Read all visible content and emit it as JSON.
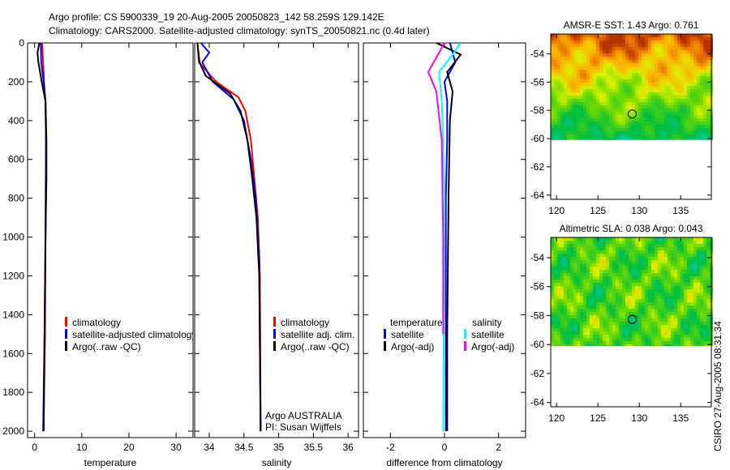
{
  "title_line1": "Argo profile: CS 5900339_19 20-Aug-2005 20050823_142 58.259S 129.142E",
  "title_line2": "Climatology: CARS2000. Satellite-adjusted climatology: synTS_20050821.nc (0.4d later)",
  "footer_stamp": "CSIRO 27-Aug-2005 08:31:34",
  "colors": {
    "clim": "#ff0000",
    "sat": "#0000ff",
    "argo": "#000000",
    "cyan": "#00ffff",
    "magenta": "#ff00ff"
  },
  "chart_data": [
    {
      "type": "line",
      "id": "temperature",
      "xlabel": "temperature",
      "ylabel": "",
      "xlim": [
        -1.5,
        33.6
      ],
      "ylim": [
        2033,
        0
      ],
      "xticks": [
        0,
        10,
        20,
        30
      ],
      "yticks": [
        0,
        200,
        400,
        600,
        800,
        1000,
        1200,
        1400,
        1600,
        1800,
        2000
      ],
      "legend": {
        "placement": "lower-middle",
        "entries": [
          "climatology",
          "satellite-adjusted climatology",
          "Argo(..raw -QC)"
        ]
      },
      "series": [
        {
          "name": "climatology",
          "color": "clim",
          "points": [
            [
              1.6,
              0
            ],
            [
              1.7,
              50
            ],
            [
              1.8,
              100
            ],
            [
              2.0,
              200
            ],
            [
              2.3,
              300
            ],
            [
              2.4,
              500
            ],
            [
              2.35,
              800
            ],
            [
              2.3,
              1000
            ],
            [
              2.2,
              1500
            ],
            [
              1.9,
              2000
            ]
          ]
        },
        {
          "name": "satellite-adjusted climatology",
          "color": "sat",
          "points": [
            [
              1.3,
              0
            ],
            [
              1.4,
              100
            ],
            [
              1.9,
              200
            ],
            [
              2.3,
              300
            ],
            [
              2.4,
              500
            ],
            [
              2.3,
              1000
            ],
            [
              2.1,
              1500
            ],
            [
              1.8,
              2000
            ]
          ]
        },
        {
          "name": "Argo(..raw -QC)",
          "color": "argo",
          "points": [
            [
              1.0,
              0
            ],
            [
              0.6,
              50
            ],
            [
              0.8,
              100
            ],
            [
              1.5,
              200
            ],
            [
              2.3,
              300
            ],
            [
              2.5,
              500
            ],
            [
              2.5,
              700
            ],
            [
              2.3,
              1000
            ],
            [
              2.1,
              1500
            ],
            [
              1.9,
              2000
            ]
          ]
        }
      ]
    },
    {
      "type": "line",
      "id": "salinity",
      "xlabel": "salinity",
      "xlim": [
        33.79,
        36.15
      ],
      "ylim": [
        2033,
        0
      ],
      "xticks": [
        34,
        34.5,
        35,
        35.5,
        36
      ],
      "yticks": [],
      "legend": {
        "placement": "lower-right",
        "entries": [
          "climatology",
          "satellite adj. clim.",
          "Argo(..raw -QC)"
        ]
      },
      "annotations": [
        "Argo AUSTRALIA",
        "PI: Susan Wijffels"
      ],
      "series": [
        {
          "name": "climatology",
          "color": "clim",
          "points": [
            [
              33.83,
              0
            ],
            [
              33.85,
              100
            ],
            [
              34.1,
              200
            ],
            [
              34.42,
              280
            ],
            [
              34.52,
              350
            ],
            [
              34.6,
              500
            ],
            [
              34.65,
              700
            ],
            [
              34.7,
              900
            ],
            [
              34.73,
              1200
            ],
            [
              34.74,
              2000
            ]
          ]
        },
        {
          "name": "satellite adj. clim.",
          "color": "sat",
          "points": [
            [
              33.88,
              0
            ],
            [
              34.0,
              50
            ],
            [
              33.9,
              100
            ],
            [
              34.05,
              200
            ],
            [
              34.35,
              290
            ],
            [
              34.5,
              400
            ],
            [
              34.6,
              600
            ],
            [
              34.67,
              800
            ],
            [
              34.72,
              1100
            ],
            [
              34.74,
              2000
            ]
          ]
        },
        {
          "name": "Argo(..raw -QC)",
          "color": "argo",
          "points": [
            [
              33.83,
              0
            ],
            [
              33.86,
              100
            ],
            [
              33.95,
              170
            ],
            [
              34.3,
              260
            ],
            [
              34.45,
              350
            ],
            [
              34.55,
              500
            ],
            [
              34.62,
              700
            ],
            [
              34.68,
              900
            ],
            [
              34.72,
              1200
            ],
            [
              34.74,
              2000
            ]
          ]
        }
      ]
    },
    {
      "type": "line",
      "id": "difference",
      "xlabel": "difference from climatology",
      "xlim": [
        -3,
        3
      ],
      "ylim": [
        2033,
        0
      ],
      "xticks": [
        -2,
        0,
        2
      ],
      "yticks": [],
      "legend": {
        "placement": "lower",
        "headers": [
          "temperature",
          "salinity"
        ],
        "entries": [
          "satellite",
          "Argo(-adj)",
          "satellite",
          "Argo(-adj)"
        ]
      },
      "series": [
        {
          "name": "temperature satellite",
          "color": "sat",
          "points": [
            [
              0.2,
              0
            ],
            [
              0.4,
              100
            ],
            [
              0.0,
              200
            ],
            [
              0.1,
              300
            ],
            [
              0.1,
              500
            ],
            [
              0.05,
              800
            ],
            [
              0.05,
              2000
            ]
          ]
        },
        {
          "name": "temperature Argo(-adj)",
          "color": "argo",
          "points": [
            [
              -0.3,
              0
            ],
            [
              0.6,
              60
            ],
            [
              0.1,
              150
            ],
            [
              0.3,
              250
            ],
            [
              0.2,
              400
            ],
            [
              0.15,
              800
            ],
            [
              0.1,
              1500
            ],
            [
              0.1,
              2000
            ]
          ]
        },
        {
          "name": "salinity satellite",
          "color": "cyan",
          "points": [
            [
              0.6,
              0
            ],
            [
              0.3,
              60
            ],
            [
              -0.2,
              150
            ],
            [
              -0.1,
              300
            ],
            [
              -0.05,
              500
            ],
            [
              0.0,
              800
            ],
            [
              -0.05,
              2000
            ]
          ]
        },
        {
          "name": "salinity Argo(-adj)",
          "color": "magenta",
          "points": [
            [
              0.0,
              0
            ],
            [
              -0.6,
              150
            ],
            [
              -0.3,
              250
            ],
            [
              -0.1,
              500
            ],
            [
              -0.05,
              1000
            ],
            [
              -0.05,
              1500
            ]
          ]
        }
      ]
    },
    {
      "type": "heatmap",
      "id": "sst-map",
      "title": "AMSR-E SST: 1.43 Argo: 0.761",
      "xlim": [
        119.3,
        138.7
      ],
      "ylim": [
        -64.3,
        -52.6
      ],
      "data_south_limit": -60.1,
      "xticks": [
        120,
        125,
        130,
        135
      ],
      "yticks": [
        -54,
        -56,
        -58,
        -60,
        -62,
        -64
      ],
      "marker": {
        "lon": 129.142,
        "lat": -58.259
      }
    },
    {
      "type": "heatmap",
      "id": "sla-map",
      "title": "Altimetric SLA: 0.038 Argo: 0.043",
      "xlim": [
        119.3,
        138.7
      ],
      "ylim": [
        -64.3,
        -52.6
      ],
      "data_south_limit": -60.1,
      "xticks": [
        120,
        125,
        130,
        135
      ],
      "yticks": [
        -54,
        -56,
        -58,
        -60,
        -62,
        -64
      ],
      "marker": {
        "lon": 129.142,
        "lat": -58.259
      }
    }
  ]
}
